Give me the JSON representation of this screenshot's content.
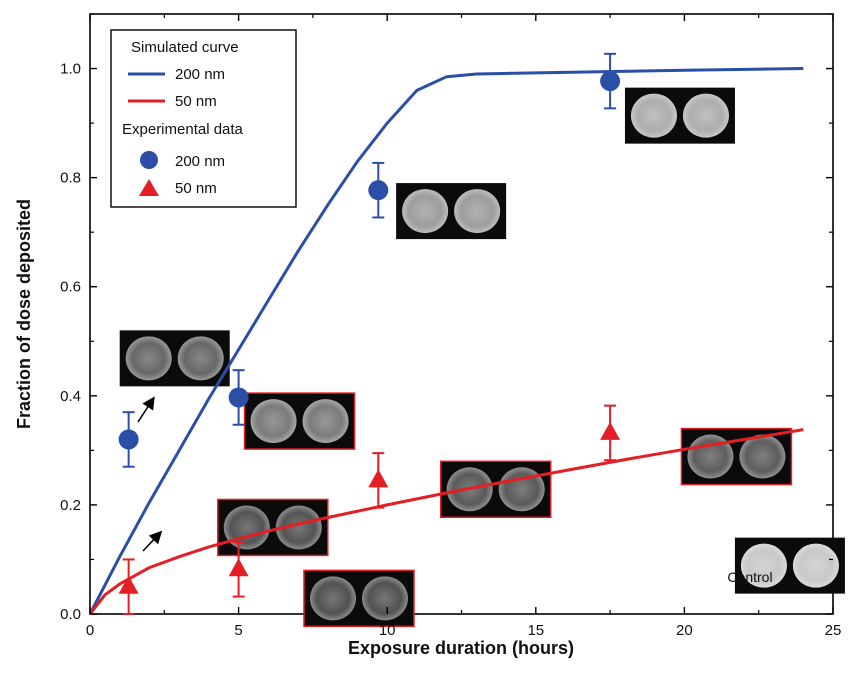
{
  "chart_data": {
    "type": "scatter",
    "xlabel": "Exposure duration (hours)",
    "ylabel": "Fraction of dose deposited",
    "xlim": [
      0,
      25
    ],
    "ylim": [
      0,
      1.1
    ],
    "xticks": [
      "0",
      "5",
      "10",
      "15",
      "20",
      "25"
    ],
    "yticks": [
      "0.0",
      "0.2",
      "0.4",
      "0.6",
      "0.8",
      "1.0"
    ],
    "grid": false,
    "legend_position": "top-left",
    "legend": {
      "sim_header": "Simulated curve",
      "exp_header": "Experimental data",
      "sim_200": "200 nm",
      "sim_50": "50 nm",
      "exp_200": "200 nm",
      "exp_50": "50 nm"
    },
    "colors": {
      "blue": "#2b4fa6",
      "red": "#e31e24"
    },
    "series": [
      {
        "name": "200 nm",
        "kind": "simulated curve",
        "points": [
          [
            0,
            0
          ],
          [
            1,
            0.105
          ],
          [
            2,
            0.205
          ],
          [
            3,
            0.3
          ],
          [
            4,
            0.395
          ],
          [
            5,
            0.485
          ],
          [
            6,
            0.575
          ],
          [
            7,
            0.665
          ],
          [
            8,
            0.75
          ],
          [
            9,
            0.83
          ],
          [
            10,
            0.9
          ],
          [
            11,
            0.96
          ],
          [
            12,
            0.985
          ],
          [
            13,
            0.99
          ],
          [
            15,
            0.992
          ],
          [
            20,
            0.997
          ],
          [
            24,
            1.0
          ]
        ]
      },
      {
        "name": "50 nm",
        "kind": "simulated curve",
        "points": [
          [
            0,
            0
          ],
          [
            0.5,
            0.035
          ],
          [
            1,
            0.055
          ],
          [
            1.5,
            0.07
          ],
          [
            2,
            0.085
          ],
          [
            3,
            0.105
          ],
          [
            4,
            0.123
          ],
          [
            5,
            0.138
          ],
          [
            6,
            0.152
          ],
          [
            7,
            0.165
          ],
          [
            8,
            0.177
          ],
          [
            10,
            0.2
          ],
          [
            12,
            0.222
          ],
          [
            14,
            0.243
          ],
          [
            16,
            0.263
          ],
          [
            18,
            0.283
          ],
          [
            20,
            0.302
          ],
          [
            22,
            0.32
          ],
          [
            24,
            0.338
          ]
        ]
      },
      {
        "name": "200 nm",
        "kind": "experimental data",
        "points": [
          {
            "x": 1.3,
            "y": 0.32,
            "err": 0.05
          },
          {
            "x": 5.0,
            "y": 0.397,
            "err": 0.05
          },
          {
            "x": 9.7,
            "y": 0.777,
            "err": 0.05
          },
          {
            "x": 17.5,
            "y": 0.977,
            "err": 0.05
          }
        ]
      },
      {
        "name": "50 nm",
        "kind": "experimental data",
        "points": [
          {
            "x": 1.3,
            "y": 0.05,
            "err": 0.05
          },
          {
            "x": 5.0,
            "y": 0.082,
            "err": 0.05
          },
          {
            "x": 9.7,
            "y": 0.245,
            "err": 0.05
          },
          {
            "x": 17.5,
            "y": 0.332,
            "err": 0.05
          }
        ]
      }
    ],
    "annotations": {
      "control_label": "Control"
    },
    "insets": [
      {
        "x": 1.0,
        "y": 0.52,
        "brightness": 0.3,
        "border": "none"
      },
      {
        "x": 5.2,
        "y": 0.405,
        "brightness": 0.42,
        "border": "red"
      },
      {
        "x": 10.3,
        "y": 0.79,
        "brightness": 0.62,
        "border": "none"
      },
      {
        "x": 18.0,
        "y": 0.965,
        "brightness": 0.72,
        "border": "none"
      },
      {
        "x": 4.3,
        "y": 0.21,
        "brightness": 0.18,
        "border": "red"
      },
      {
        "x": 7.2,
        "y": 0.08,
        "brightness": 0.17,
        "border": "red"
      },
      {
        "x": 11.8,
        "y": 0.28,
        "brightness": 0.22,
        "border": "red"
      },
      {
        "x": 19.9,
        "y": 0.34,
        "brightness": 0.24,
        "border": "red"
      },
      {
        "x": 21.7,
        "y": 0.14,
        "brightness": 0.88,
        "border": "none"
      }
    ]
  }
}
